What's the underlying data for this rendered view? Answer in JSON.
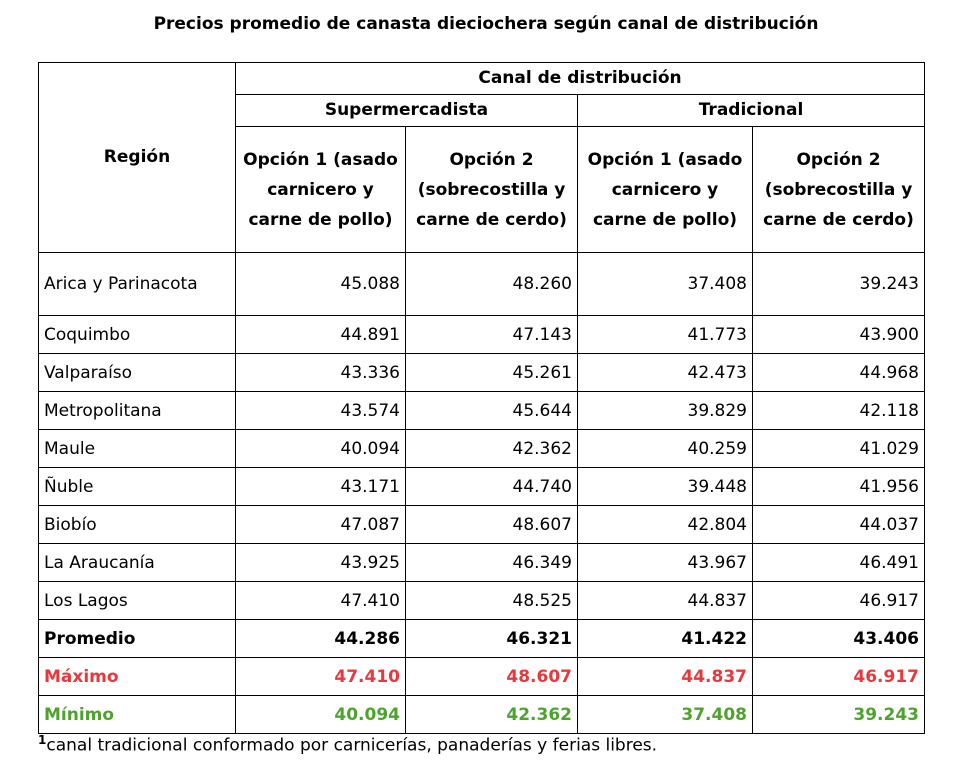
{
  "title": "Precios promedio de canasta dieciochera según canal de distribución",
  "header": {
    "region": "Región",
    "channel": "Canal de distribución",
    "groups": [
      "Supermercadista",
      "Tradicional"
    ],
    "options": [
      "Opción 1 (asado carnicero y carne de pollo)",
      "Opción 2 (sobrecostilla y carne de cerdo)",
      "Opción 1 (asado carnicero y carne de pollo)",
      "Opción 2 (sobrecostilla y carne de cerdo)"
    ]
  },
  "rows": [
    [
      "Arica y Parinacota",
      "45.088",
      "48.260",
      "37.408",
      "39.243"
    ],
    [
      "Coquimbo",
      "44.891",
      "47.143",
      "41.773",
      "43.900"
    ],
    [
      "Valparaíso",
      "43.336",
      "45.261",
      "42.473",
      "44.968"
    ],
    [
      "Metropolitana",
      "43.574",
      "45.644",
      "39.829",
      "42.118"
    ],
    [
      "Maule",
      "40.094",
      "42.362",
      "40.259",
      "41.029"
    ],
    [
      "Ñuble",
      "43.171",
      "44.740",
      "39.448",
      "41.956"
    ],
    [
      "Biobío",
      "47.087",
      "48.607",
      "42.804",
      "44.037"
    ],
    [
      "La Araucanía",
      "43.925",
      "46.349",
      "43.967",
      "46.491"
    ],
    [
      "Los Lagos",
      "47.410",
      "48.525",
      "44.837",
      "46.917"
    ]
  ],
  "summary": [
    [
      "Promedio",
      "44.286",
      "46.321",
      "41.422",
      "43.406"
    ],
    [
      "Máximo",
      "47.410",
      "48.607",
      "44.837",
      "46.917"
    ],
    [
      "Mínimo",
      "40.094",
      "42.362",
      "37.408",
      "39.243"
    ]
  ],
  "footnote": {
    "mark": "1",
    "text": "canal tradicional conformado por carnicerías, panaderías y ferias libres."
  }
}
